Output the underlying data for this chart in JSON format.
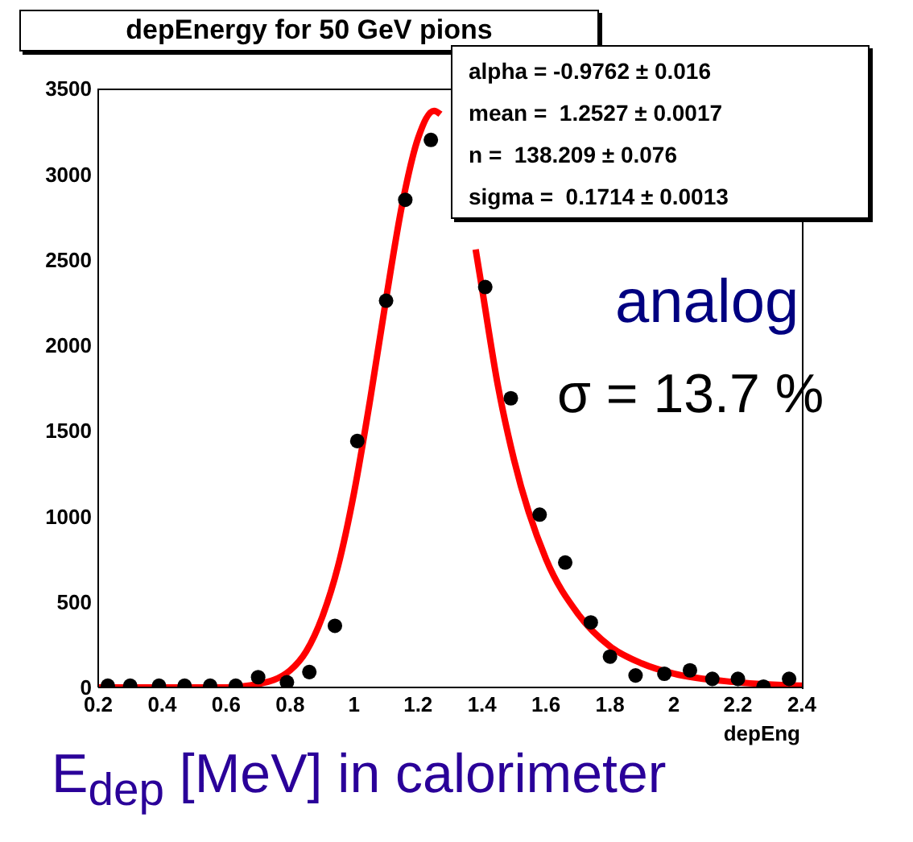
{
  "chart_data": {
    "type": "scatter",
    "title": "depEnergy for 50 GeV pions",
    "xlabel": "depEng",
    "annotations": [
      "alpha = -0.9762 ± 0.016",
      "mean =  1.2527 ± 0.0017",
      "n =  138.209 ± 0.076",
      "sigma =  0.1714 ± 0.0013",
      "analog",
      "σ = 13.7 %",
      "E$_{dep}$ [MeV] in calorimeter"
    ],
    "series": [
      {
        "type": "scatter",
        "color": "#000000",
        "marker": "circle",
        "x": [
          0.23,
          0.3,
          0.39,
          0.47,
          0.55,
          0.63,
          0.7,
          0.79,
          0.86,
          0.94,
          1.01,
          1.1,
          1.16,
          1.24,
          1.41,
          1.49,
          1.58,
          1.66,
          1.74,
          1.8,
          1.88,
          1.97,
          2.05,
          2.12,
          2.2,
          2.28,
          2.36
        ],
        "values": [
          10,
          10,
          10,
          10,
          10,
          10,
          60,
          30,
          90,
          360,
          1440,
          2260,
          2850,
          3200,
          2340,
          1690,
          1010,
          730,
          380,
          180,
          70,
          80,
          100,
          50,
          50,
          5,
          50
        ]
      },
      {
        "type": "line",
        "color": "#ff0000",
        "x": [
          0.2,
          0.4,
          0.6,
          0.7,
          0.8,
          0.85,
          0.9,
          0.95,
          1.0,
          1.05,
          1.1,
          1.15,
          1.2,
          1.25,
          1.27,
          1.3,
          1.35,
          1.38,
          1.4,
          1.45,
          1.5,
          1.6,
          1.7,
          1.8,
          1.9,
          2.0,
          2.2,
          2.4
        ],
        "values": [
          0,
          0,
          0,
          20,
          100,
          210,
          410,
          710,
          1140,
          1680,
          2270,
          2820,
          3210,
          3370,
          3350,
          null,
          null,
          2560,
          2330,
          1760,
          1330,
          750,
          430,
          240,
          140,
          80,
          30,
          10
        ]
      }
    ],
    "xlim": [
      0.2,
      2.4
    ],
    "xticks": [
      0.2,
      0.4,
      0.6,
      0.8,
      1,
      1.2,
      1.4,
      1.6,
      1.8,
      2,
      2.2,
      2.4
    ],
    "ylim": [
      0,
      3500
    ],
    "yticks": [
      0,
      500,
      1000,
      1500,
      2000,
      2500,
      3000,
      3500
    ],
    "grid": false,
    "legend": false
  }
}
